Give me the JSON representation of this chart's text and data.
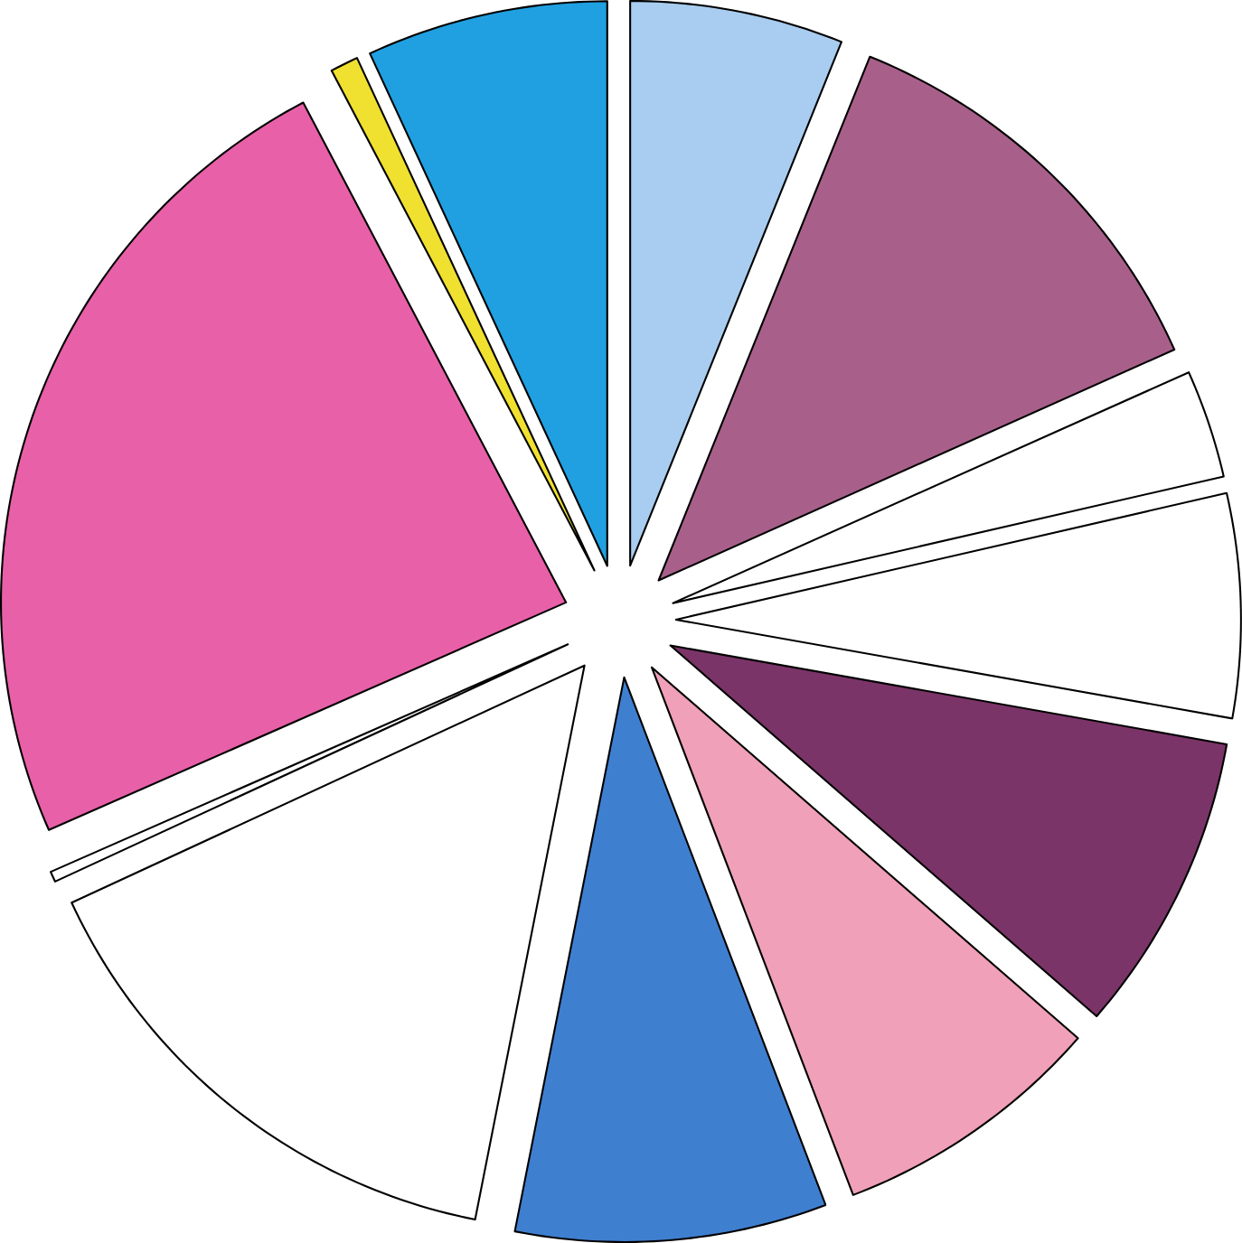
{
  "chart_data": {
    "type": "pie",
    "categories": [
      null,
      null,
      null,
      null,
      null,
      null,
      null,
      null,
      null,
      null,
      null,
      null
    ],
    "values": [
      6.1,
      12.2,
      3.1,
      6.4,
      8.6,
      7.8,
      8.9,
      15.0,
      0.3,
      23.9,
      0.8,
      6.9
    ],
    "colors": [
      "#a9cdf0",
      "#a8608a",
      "#ffffff",
      "#ffffff",
      "#7b3468",
      "#f0a0b8",
      "#3f7fd0",
      "#ffffff",
      "#ffffff",
      "#e860a8",
      "#f0e030",
      "#20a0e0"
    ]
  }
}
